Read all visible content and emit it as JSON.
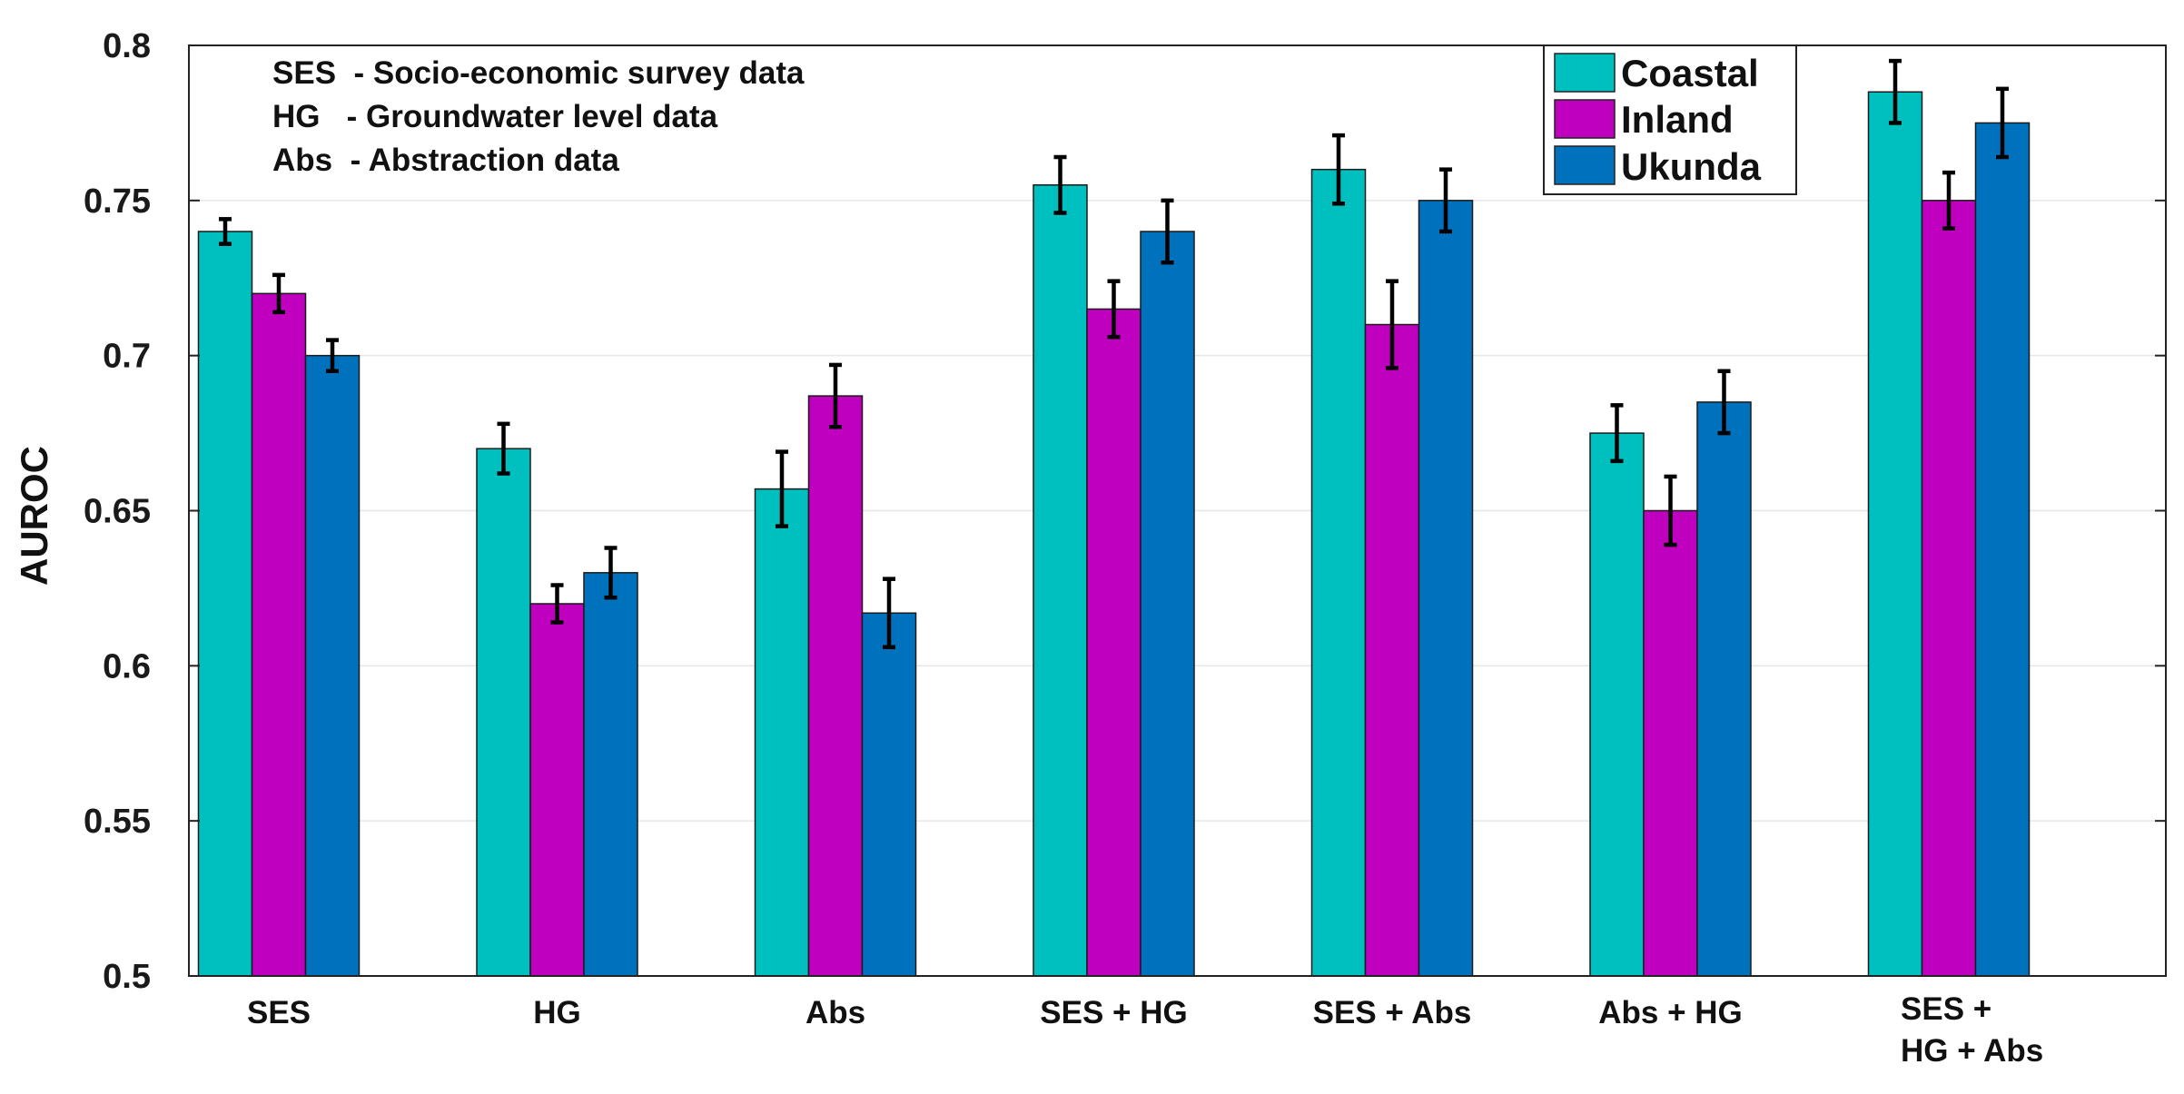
{
  "chart_data": {
    "type": "bar",
    "ylabel": "AUROC",
    "xlabel": "",
    "ylim": [
      0.5,
      0.8
    ],
    "yticks": [
      "0.5",
      "0.55",
      "0.6",
      "0.65",
      "0.7",
      "0.75",
      "0.8"
    ],
    "grid": "horizontal",
    "categories": [
      [
        "SES"
      ],
      [
        "HG"
      ],
      [
        "Abs"
      ],
      [
        "SES + HG"
      ],
      [
        "SES + Abs"
      ],
      [
        "Abs + HG"
      ],
      [
        "SES +",
        "HG + Abs"
      ]
    ],
    "series": [
      {
        "name": "Coastal",
        "color": "#00BFBF",
        "values": [
          0.74,
          0.67,
          0.657,
          0.755,
          0.76,
          0.675,
          0.785
        ],
        "errors": [
          0.004,
          0.008,
          0.012,
          0.009,
          0.011,
          0.009,
          0.01
        ]
      },
      {
        "name": "Inland",
        "color": "#BF00BF",
        "values": [
          0.72,
          0.62,
          0.687,
          0.715,
          0.71,
          0.65,
          0.75
        ],
        "errors": [
          0.006,
          0.006,
          0.01,
          0.009,
          0.014,
          0.011,
          0.009
        ]
      },
      {
        "name": "Ukunda",
        "color": "#0072BD",
        "values": [
          0.7,
          0.63,
          0.617,
          0.74,
          0.75,
          0.685,
          0.775
        ],
        "errors": [
          0.005,
          0.008,
          0.011,
          0.01,
          0.01,
          0.01,
          0.011
        ]
      }
    ],
    "annotations": [
      "SES  - Socio-economic survey data",
      "HG   - Groundwater level data",
      "Abs  - Abstraction data"
    ],
    "legend_position": "top-right"
  }
}
